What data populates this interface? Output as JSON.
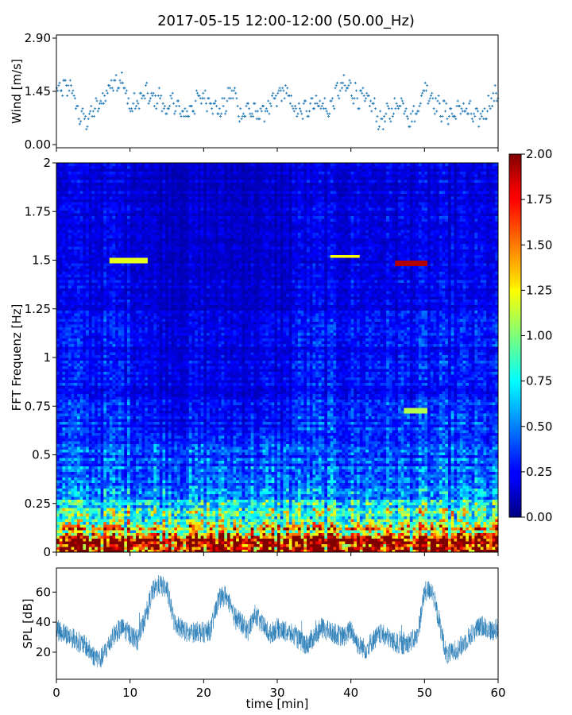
{
  "chart_data": [
    {
      "panel": "wind",
      "type": "scatter",
      "title": "2017-05-15 12:00-12:00 (50.00_Hz)",
      "xlabel": "",
      "ylabel": "Wind [m/s]",
      "xlim": [
        0,
        60
      ],
      "ylim": [
        0,
        2.9
      ],
      "yticks": [
        0,
        1.45,
        2.9
      ],
      "ytick_labels": [
        "0.00",
        "1.45",
        "2.90"
      ],
      "xticks": [
        0,
        10,
        20,
        30,
        40,
        50,
        60
      ],
      "marker": "+",
      "color": "#1f77b4",
      "grid": false,
      "trend": {
        "x": [
          0,
          1,
          2,
          3,
          4,
          5,
          6,
          7,
          8,
          9,
          10,
          11,
          12,
          13,
          14,
          15,
          16,
          17,
          18,
          19,
          20,
          21,
          22,
          23,
          24,
          25,
          26,
          27,
          28,
          29,
          30,
          31,
          32,
          33,
          34,
          35,
          36,
          37,
          38,
          39,
          40,
          41,
          42,
          43,
          44,
          45,
          46,
          47,
          48,
          49,
          50,
          51,
          52,
          53,
          54,
          55,
          56,
          57,
          58,
          59,
          60
        ],
        "y": [
          1.4,
          1.5,
          1.6,
          0.8,
          0.7,
          0.9,
          1.1,
          1.5,
          1.8,
          1.7,
          1.0,
          1.1,
          1.4,
          1.2,
          1.3,
          0.9,
          1.2,
          0.8,
          0.9,
          1.2,
          1.3,
          1.2,
          0.9,
          1.1,
          1.5,
          0.8,
          1.0,
          0.8,
          0.9,
          1.0,
          1.3,
          1.5,
          1.1,
          0.8,
          1.0,
          1.2,
          1.1,
          0.9,
          1.4,
          1.6,
          1.5,
          1.3,
          1.2,
          1.1,
          0.6,
          0.8,
          1.0,
          1.2,
          0.7,
          0.9,
          1.6,
          1.3,
          1.0,
          0.9,
          0.8,
          1.0,
          0.9,
          0.7,
          0.8,
          1.2,
          1.4
        ]
      }
    },
    {
      "panel": "spectrogram",
      "type": "heatmap",
      "xlabel": "",
      "ylabel": "FFT Frequenz [Hz]",
      "xlim": [
        0,
        60
      ],
      "ylim": [
        0,
        2
      ],
      "yticks": [
        0,
        0.25,
        0.5,
        0.75,
        1,
        1.25,
        1.5,
        1.75,
        2
      ],
      "ytick_labels": [
        "0",
        "0.25",
        "0.5",
        "0.75",
        "1",
        "1.25",
        "1.5",
        "1.75",
        "2"
      ],
      "colormap": "jet",
      "colorbar": {
        "range": [
          0,
          2
        ],
        "ticks": [
          0,
          0.25,
          0.5,
          0.75,
          1,
          1.25,
          1.5,
          1.75,
          2
        ],
        "tick_labels": [
          "0.00",
          "0.25",
          "0.50",
          "0.75",
          "1.00",
          "1.25",
          "1.50",
          "1.75",
          "2.00"
        ]
      },
      "profile": {
        "frequency_hz": [
          0,
          0.05,
          0.1,
          0.15,
          0.2,
          0.25,
          0.3,
          0.4,
          0.5,
          0.75,
          1.0,
          1.25,
          1.5,
          1.75,
          2.0
        ],
        "typical_value": [
          2.0,
          1.9,
          1.3,
          1.0,
          0.8,
          0.7,
          0.55,
          0.45,
          0.38,
          0.3,
          0.27,
          0.24,
          0.22,
          0.2,
          0.2
        ]
      },
      "highlights": [
        {
          "t": [
            7,
            12
          ],
          "f": 1.5,
          "value": 1.2
        },
        {
          "t": [
            37,
            41
          ],
          "f": 1.52,
          "value": 1.25
        },
        {
          "t": [
            46,
            50
          ],
          "f": 1.49,
          "value": 1.9
        },
        {
          "t": [
            47,
            50
          ],
          "f": 0.73,
          "value": 1.1
        }
      ]
    },
    {
      "panel": "spl",
      "type": "line",
      "xlabel": "time [min]",
      "ylabel": "SPL [dB]",
      "xlim": [
        0,
        60
      ],
      "ylim": [
        2,
        76
      ],
      "yticks": [
        20,
        40,
        60
      ],
      "xticks": [
        0,
        10,
        20,
        30,
        40,
        50,
        60
      ],
      "xtick_labels": [
        "0",
        "10",
        "20",
        "30",
        "40",
        "50",
        "60"
      ],
      "color": "#1f77b4",
      "grid": false,
      "envelope": {
        "x": [
          0,
          1,
          2,
          3,
          4,
          5,
          6,
          7,
          8,
          9,
          10,
          11,
          12,
          13,
          14,
          15,
          16,
          17,
          18,
          19,
          20,
          21,
          22,
          23,
          24,
          25,
          26,
          27,
          28,
          29,
          30,
          31,
          32,
          33,
          34,
          35,
          36,
          37,
          38,
          39,
          40,
          41,
          42,
          43,
          44,
          45,
          46,
          47,
          48,
          49,
          50,
          51,
          52,
          53,
          54,
          55,
          56,
          57,
          58,
          59,
          60
        ],
        "y": [
          35,
          33,
          30,
          27,
          24,
          18,
          15,
          24,
          33,
          36,
          32,
          28,
          42,
          60,
          65,
          62,
          40,
          36,
          32,
          34,
          33,
          35,
          55,
          58,
          45,
          40,
          34,
          45,
          38,
          32,
          36,
          34,
          32,
          28,
          25,
          30,
          36,
          34,
          32,
          30,
          35,
          25,
          22,
          28,
          32,
          30,
          26,
          25,
          27,
          30,
          60,
          62,
          40,
          18,
          20,
          24,
          30,
          35,
          38,
          34,
          36
        ]
      }
    }
  ]
}
